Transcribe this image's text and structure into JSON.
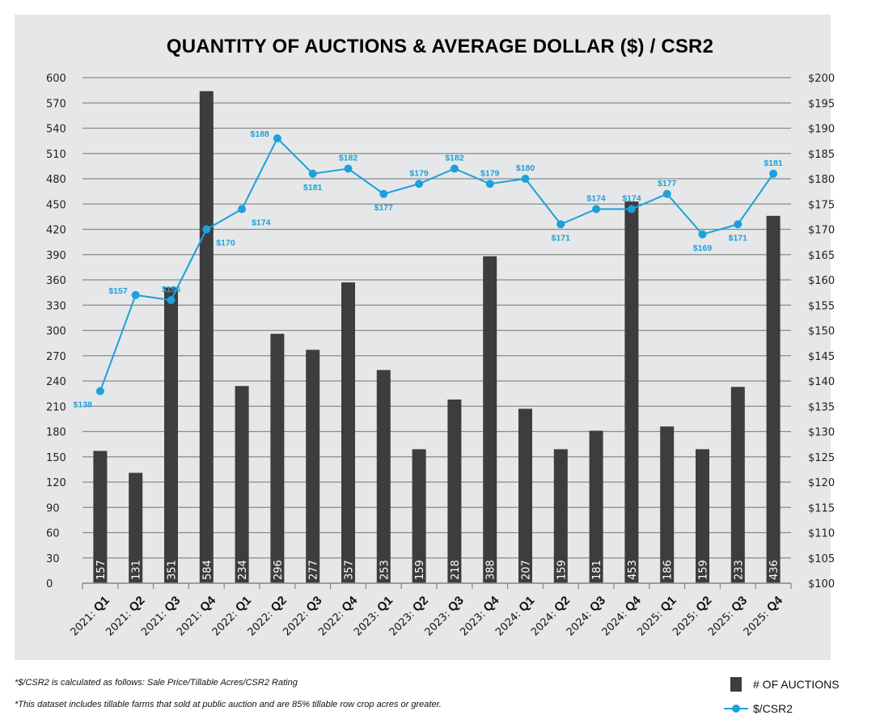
{
  "chart_data": {
    "type": "bar+line",
    "title": "QUANTITY OF AUCTIONS & AVERAGE DOLLAR ($) / CSR2",
    "categories": [
      {
        "year": "2021:",
        "q": "Q1"
      },
      {
        "year": "2021:",
        "q": "Q2"
      },
      {
        "year": "2021:",
        "q": "Q3"
      },
      {
        "year": "2021:",
        "q": "Q4"
      },
      {
        "year": "2022:",
        "q": "Q1"
      },
      {
        "year": "2022:",
        "q": "Q2"
      },
      {
        "year": "2022:",
        "q": "Q3"
      },
      {
        "year": "2022:",
        "q": "Q4"
      },
      {
        "year": "2023:",
        "q": "Q1"
      },
      {
        "year": "2023:",
        "q": "Q2"
      },
      {
        "year": "2023:",
        "q": "Q3"
      },
      {
        "year": "2023:",
        "q": "Q4"
      },
      {
        "year": "2024:",
        "q": "Q1"
      },
      {
        "year": "2024:",
        "q": "Q2"
      },
      {
        "year": "2024:",
        "q": "Q3"
      },
      {
        "year": "2024:",
        "q": "Q4"
      },
      {
        "year": "2025:",
        "q": "Q1"
      },
      {
        "year": "2025:",
        "q": "Q2"
      },
      {
        "year": "2025:",
        "q": "Q3"
      },
      {
        "year": "2025:",
        "q": "Q4"
      }
    ],
    "series": [
      {
        "name": "# OF AUCTIONS",
        "type": "bar",
        "axis": "left",
        "color": "#3d3c3e",
        "values": [
          157,
          131,
          351,
          584,
          234,
          296,
          277,
          357,
          253,
          159,
          218,
          388,
          207,
          159,
          181,
          453,
          186,
          159,
          233,
          436
        ]
      },
      {
        "name": "$/CSR2",
        "type": "line",
        "axis": "right",
        "color": "#1ba1db",
        "values": [
          138,
          157,
          156,
          170,
          174,
          188,
          181,
          182,
          177,
          179,
          182,
          179,
          180,
          171,
          174,
          174,
          177,
          169,
          171,
          181
        ],
        "labels": [
          "$138",
          "$157",
          "$156",
          "$170",
          "$174",
          "$188",
          "$181",
          "$182",
          "$177",
          "$179",
          "$182",
          "$179",
          "$180",
          "$171",
          "$174",
          "$174",
          "$177",
          "$169",
          "$171",
          "$181"
        ]
      }
    ],
    "y_left": {
      "min": 0,
      "max": 600,
      "step": 30,
      "ticks": [
        "0",
        "30",
        "60",
        "90",
        "120",
        "150",
        "180",
        "210",
        "240",
        "270",
        "300",
        "330",
        "360",
        "390",
        "420",
        "450",
        "480",
        "510",
        "540",
        "570",
        "600"
      ]
    },
    "y_right": {
      "min": 100,
      "max": 200,
      "step": 5,
      "ticks": [
        "$100",
        "$105",
        "$110",
        "$115",
        "$120",
        "$125",
        "$130",
        "$135",
        "$140",
        "$145",
        "$150",
        "$155",
        "$160",
        "$165",
        "$170",
        "$175",
        "$180",
        "$185",
        "$190",
        "$195",
        "$200"
      ]
    },
    "grid": true,
    "legend_position": "bottom-right"
  },
  "footnotes": [
    "*$/CSR2 is calculated as follows: Sale Price/Tillable Acres/CSR2 Rating",
    "*This dataset includes tillable farms that sold at public auction and are 85% tillable row crop acres or greater."
  ],
  "legend": {
    "bar_label": "# OF AUCTIONS",
    "line_label": "$/CSR2"
  }
}
